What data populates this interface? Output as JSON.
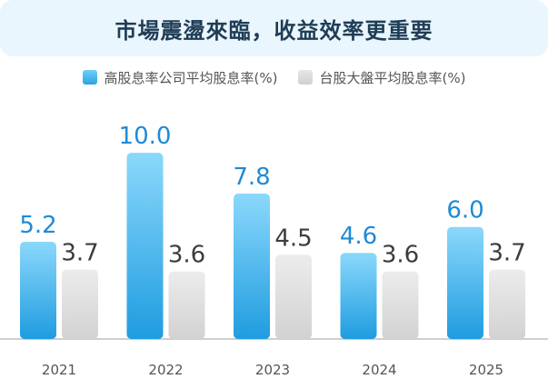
{
  "title": "市場震盪來臨，收益效率更重要",
  "colors": {
    "series_a_top": "#8bd8fb",
    "series_a_bottom": "#1f9ce0",
    "series_b_top": "#ececec",
    "series_b_bottom": "#d2d2d2",
    "baseline": "#cfcfcf"
  },
  "chart_data": {
    "type": "bar",
    "title": "市場震盪來臨，收益效率更重要",
    "categories": [
      "2021",
      "2022",
      "2023",
      "2024",
      "2025"
    ],
    "series": [
      {
        "name": "高股息率公司平均股息率(%)",
        "values": [
          5.2,
          10.0,
          7.8,
          4.6,
          6.0
        ]
      },
      {
        "name": "台股大盤平均股息率(%)",
        "values": [
          3.7,
          3.6,
          4.5,
          3.6,
          3.7
        ]
      }
    ],
    "value_labels": [
      [
        "5.2",
        "10.0",
        "7.8",
        "4.6",
        "6.0"
      ],
      [
        "3.7",
        "3.6",
        "4.5",
        "3.6",
        "3.7"
      ]
    ],
    "xlabel": "",
    "ylabel": "",
    "ylim": [
      0,
      10.4
    ],
    "grid": false,
    "legend_position": "top-center"
  }
}
